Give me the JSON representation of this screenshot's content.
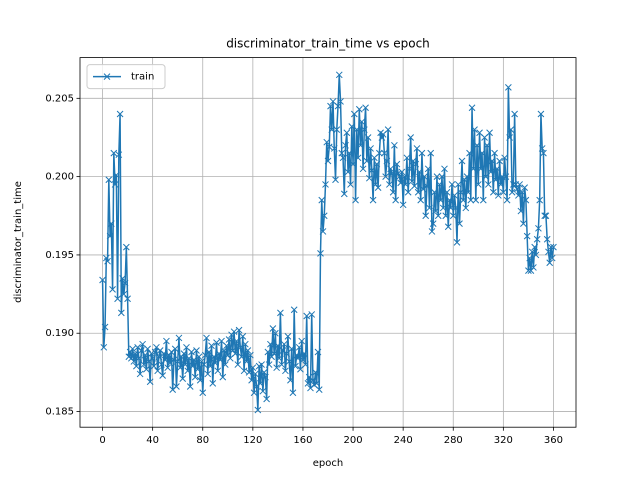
{
  "chart_data": {
    "type": "line",
    "title": "discriminator_train_time vs epoch",
    "xlabel": "epoch",
    "ylabel": "discriminator_train_time",
    "xlim": [
      -18,
      378
    ],
    "ylim": [
      0.184,
      0.2076
    ],
    "xticks": [
      0,
      40,
      80,
      120,
      160,
      200,
      240,
      280,
      320,
      360
    ],
    "yticks": [
      0.185,
      {
        "value": 0.19,
        "label": "0.190"
      },
      0.195,
      {
        "value": 0.2,
        "label": "0.200"
      },
      0.205
    ],
    "grid": true,
    "legend": "upper left",
    "marker": "x",
    "x": [
      0,
      1,
      2,
      3,
      4,
      5,
      6,
      7,
      8,
      9,
      10,
      11,
      12,
      13,
      14,
      15,
      16,
      17,
      18,
      19,
      20,
      21,
      22,
      23,
      24,
      25,
      26,
      27,
      28,
      29,
      30,
      31,
      32,
      33,
      34,
      35,
      36,
      37,
      38,
      39,
      40,
      41,
      42,
      43,
      44,
      45,
      46,
      47,
      48,
      49,
      50,
      51,
      52,
      53,
      54,
      55,
      56,
      57,
      58,
      59,
      60,
      61,
      62,
      63,
      64,
      65,
      66,
      67,
      68,
      69,
      70,
      71,
      72,
      73,
      74,
      75,
      76,
      77,
      78,
      79,
      80,
      81,
      82,
      83,
      84,
      85,
      86,
      87,
      88,
      89,
      90,
      91,
      92,
      93,
      94,
      95,
      96,
      97,
      98,
      99,
      100,
      101,
      102,
      103,
      104,
      105,
      106,
      107,
      108,
      109,
      110,
      111,
      112,
      113,
      114,
      115,
      116,
      117,
      118,
      119,
      120,
      121,
      122,
      123,
      124,
      125,
      126,
      127,
      128,
      129,
      130,
      131,
      132,
      133,
      134,
      135,
      136,
      137,
      138,
      139,
      140,
      141,
      142,
      143,
      144,
      145,
      146,
      147,
      148,
      149,
      150,
      151,
      152,
      153,
      154,
      155,
      156,
      157,
      158,
      159,
      160,
      161,
      162,
      163,
      164,
      165,
      166,
      167,
      168,
      169,
      170,
      171,
      172,
      173,
      174,
      175,
      176,
      177,
      178,
      179,
      180,
      181,
      182,
      183,
      184,
      185,
      186,
      187,
      188,
      189,
      190,
      191,
      192,
      193,
      194,
      195,
      196,
      197,
      198,
      199,
      200,
      201,
      202,
      203,
      204,
      205,
      206,
      207,
      208,
      209,
      210,
      211,
      212,
      213,
      214,
      215,
      216,
      217,
      218,
      219,
      220,
      221,
      222,
      223,
      224,
      225,
      226,
      227,
      228,
      229,
      230,
      231,
      232,
      233,
      234,
      235,
      236,
      237,
      238,
      239,
      240,
      241,
      242,
      243,
      244,
      245,
      246,
      247,
      248,
      249,
      250,
      251,
      252,
      253,
      254,
      255,
      256,
      257,
      258,
      259,
      260,
      261,
      262,
      263,
      264,
      265,
      266,
      267,
      268,
      269,
      270,
      271,
      272,
      273,
      274,
      275,
      276,
      277,
      278,
      279,
      280,
      281,
      282,
      283,
      284,
      285,
      286,
      287,
      288,
      289,
      290,
      291,
      292,
      293,
      294,
      295,
      296,
      297,
      298,
      299,
      300,
      301,
      302,
      303,
      304,
      305,
      306,
      307,
      308,
      309,
      310,
      311,
      312,
      313,
      314,
      315,
      316,
      317,
      318,
      319,
      320,
      321,
      322,
      323,
      324,
      325,
      326,
      327,
      328,
      329,
      330,
      331,
      332,
      333,
      334,
      335,
      336,
      337,
      338,
      339,
      340,
      341,
      342,
      343,
      344,
      345,
      346,
      347,
      348,
      349,
      350,
      351,
      352,
      353,
      354,
      355,
      356,
      357,
      358,
      359,
      360
    ],
    "series": [
      {
        "name": "train",
        "color": "#1f77b4",
        "values": [
          0.1934,
          0.1891,
          0.1904,
          0.1948,
          0.1946,
          0.1998,
          0.1962,
          0.197,
          0.1928,
          0.2015,
          0.1995,
          0.2001,
          0.1922,
          0.2014,
          0.204,
          0.1913,
          0.1935,
          0.1925,
          0.1932,
          0.1955,
          0.1922,
          0.1885,
          0.1888,
          0.1884,
          0.189,
          0.1882,
          0.1887,
          0.1879,
          0.1891,
          0.1884,
          0.1874,
          0.1889,
          0.1893,
          0.188,
          0.1886,
          0.1877,
          0.189,
          0.1882,
          0.1869,
          0.1887,
          0.1884,
          0.1879,
          0.1888,
          0.1891,
          0.1876,
          0.1885,
          0.1889,
          0.188,
          0.1873,
          0.1887,
          0.1883,
          0.1895,
          0.1878,
          0.1886,
          0.1881,
          0.1888,
          0.1864,
          0.1883,
          0.189,
          0.1866,
          0.1882,
          0.1897,
          0.1878,
          0.1885,
          0.1871,
          0.1887,
          0.188,
          0.1891,
          0.1876,
          0.1884,
          0.1866,
          0.1888,
          0.1879,
          0.1883,
          0.1872,
          0.1889,
          0.1877,
          0.1885,
          0.187,
          0.1882,
          0.1862,
          0.188,
          0.1886,
          0.1897,
          0.1874,
          0.1888,
          0.1879,
          0.1892,
          0.1868,
          0.1885,
          0.1881,
          0.1894,
          0.1876,
          0.1887,
          0.1883,
          0.1895,
          0.1872,
          0.1889,
          0.188,
          0.1892,
          0.1886,
          0.1896,
          0.1884,
          0.1899,
          0.1889,
          0.1901,
          0.1887,
          0.1895,
          0.188,
          0.1902,
          0.1891,
          0.1885,
          0.1898,
          0.1876,
          0.1893,
          0.1882,
          0.1889,
          0.1875,
          0.1886,
          0.187,
          0.1878,
          0.1862,
          0.1874,
          0.1866,
          0.1851,
          0.1879,
          0.1868,
          0.188,
          0.1863,
          0.1875,
          0.1872,
          0.1858,
          0.1888,
          0.188,
          0.1893,
          0.1885,
          0.1903,
          0.1887,
          0.19,
          0.1878,
          0.1892,
          0.1884,
          0.1913,
          0.188,
          0.1889,
          0.1893,
          0.1876,
          0.1887,
          0.1898,
          0.1882,
          0.187,
          0.189,
          0.1862,
          0.1915,
          0.1879,
          0.1886,
          0.1884,
          0.1891,
          0.1877,
          0.1895,
          0.1883,
          0.1887,
          0.188,
          0.1911,
          0.1868,
          0.1872,
          0.1865,
          0.1912,
          0.187,
          0.1867,
          0.1875,
          0.1868,
          0.1888,
          0.1864,
          0.1951,
          0.1985,
          0.1965,
          0.1975,
          0.1995,
          0.2022,
          0.201,
          0.2019,
          0.2045,
          0.203,
          0.2048,
          0.2018,
          0.1998,
          0.203,
          0.2045,
          0.2065,
          0.2048,
          0.2015,
          0.2012,
          0.1989,
          0.202,
          0.2028,
          0.2003,
          0.2015,
          0.1995,
          0.2032,
          0.2008,
          0.204,
          0.1985,
          0.203,
          0.2012,
          0.2043,
          0.202,
          0.2035,
          0.2005,
          0.203,
          0.2044,
          0.201,
          0.2025,
          0.1999,
          0.2018,
          0.2004,
          0.1985,
          0.2012,
          0.1995,
          0.2008,
          0.1993,
          0.2015,
          0.2028,
          0.2025,
          0.2027,
          0.2015,
          0.2,
          0.201,
          0.203,
          0.1995,
          0.2005,
          0.2002,
          0.199,
          0.202,
          0.1985,
          0.2008,
          0.2002,
          0.2,
          0.1996,
          0.2003,
          0.1982,
          0.2,
          0.1995,
          0.2012,
          0.199,
          0.2005,
          0.2025,
          0.1997,
          0.201,
          0.1994,
          0.2008,
          0.2018,
          0.199,
          0.2003,
          0.1985,
          0.2015,
          0.1992,
          0.2,
          0.1975,
          0.1994,
          0.2005,
          0.198,
          0.2015,
          0.1965,
          0.197,
          0.199,
          0.1978,
          0.2,
          0.1975,
          0.1995,
          0.1985,
          0.2,
          0.198,
          0.2005,
          0.1975,
          0.199,
          0.1968,
          0.1985,
          0.198,
          0.1995,
          0.1975,
          0.1988,
          0.198,
          0.1958,
          0.1995,
          0.197,
          0.199,
          0.201,
          0.1985,
          0.1998,
          0.198,
          0.2,
          0.199,
          0.2015,
          0.1985,
          0.2044,
          0.2005,
          0.203,
          0.1985,
          0.202,
          0.1995,
          0.2028,
          0.2005,
          0.2015,
          0.1985,
          0.2025,
          0.2,
          0.202,
          0.1995,
          0.2028,
          0.2003,
          0.201,
          0.199,
          0.2015,
          0.1998,
          0.2005,
          0.1988,
          0.201,
          0.1995,
          0.2,
          0.199,
          0.2012,
          0.2,
          0.1985,
          0.2057,
          0.2025,
          0.203,
          0.199,
          0.1995,
          0.204,
          0.1995,
          0.1992,
          0.1988,
          0.1995,
          0.1978,
          0.199,
          0.197,
          0.1993,
          0.1985,
          0.1962,
          0.194,
          0.1948,
          0.194,
          0.1952,
          0.1942,
          0.1955,
          0.195,
          0.196,
          0.1967,
          0.1985,
          0.204,
          0.2018,
          0.2015,
          0.1975,
          0.1975,
          0.196,
          0.1952,
          0.1945,
          0.1955,
          0.1948,
          0.1955
        ]
      }
    ]
  }
}
